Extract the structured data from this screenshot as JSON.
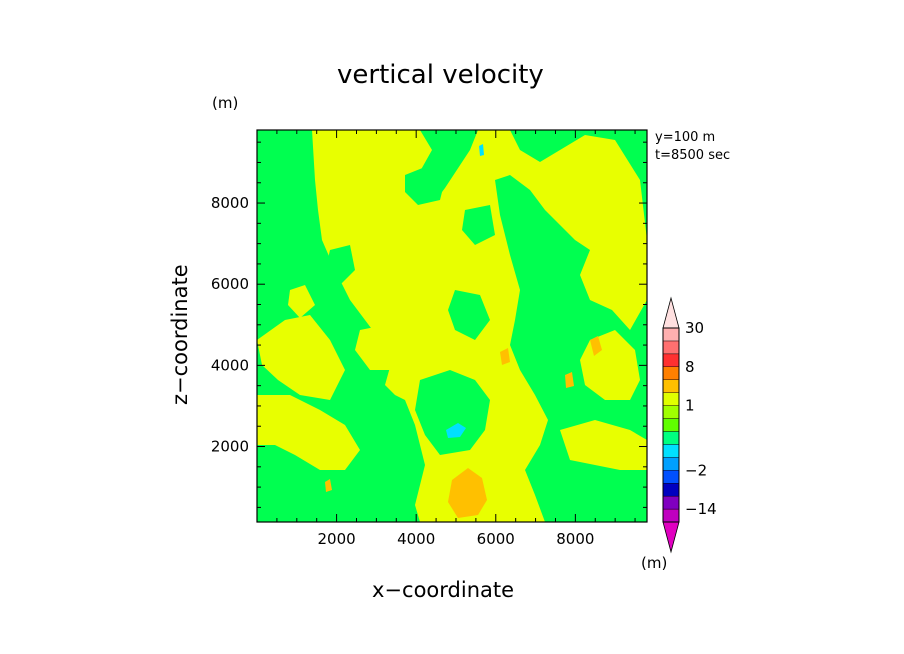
{
  "chart_data": {
    "type": "heatmap",
    "title": "vertical velocity",
    "xlabel": "x−coordinate",
    "ylabel": "z−coordinate",
    "x_unit": "(m)",
    "y_unit": "(m)",
    "colorbar_unit": "(m)",
    "annotations": [
      "y=100 m",
      "t=8500 sec"
    ],
    "xlim": [
      0,
      9800
    ],
    "ylim": [
      140,
      9800
    ],
    "x_ticks": [
      2000,
      4000,
      6000,
      8000
    ],
    "y_ticks": [
      2000,
      4000,
      6000,
      8000
    ],
    "x_tick_labels": [
      "2000",
      "4000",
      "6000",
      "8000"
    ],
    "y_tick_labels": [
      "2000",
      "4000",
      "6000",
      "8000"
    ],
    "colorbar": {
      "levels": [
        -20,
        -14,
        -8,
        -5,
        -2,
        -1,
        -0.5,
        0,
        0.5,
        1,
        2,
        5,
        8,
        15,
        22,
        30
      ],
      "labels": [
        "30",
        "8",
        "1",
        "−2",
        "−14"
      ],
      "colors": [
        "#c000c0",
        "#8000c0",
        "#0000c0",
        "#0050ff",
        "#00a0ff",
        "#00e0ff",
        "#00ff80",
        "#60ff00",
        "#a0ff00",
        "#e0ff00",
        "#ffc000",
        "#ff8000",
        "#ff3030",
        "#ff7070",
        "#ffb0b0"
      ]
    },
    "field_description_values": {
      "background_level": "0 to 0.5",
      "main_positive_region_level": "0.5 to 1",
      "orange_patches_level": "1 to 2",
      "cyan_patch_level": "-1 to -0.5"
    }
  }
}
